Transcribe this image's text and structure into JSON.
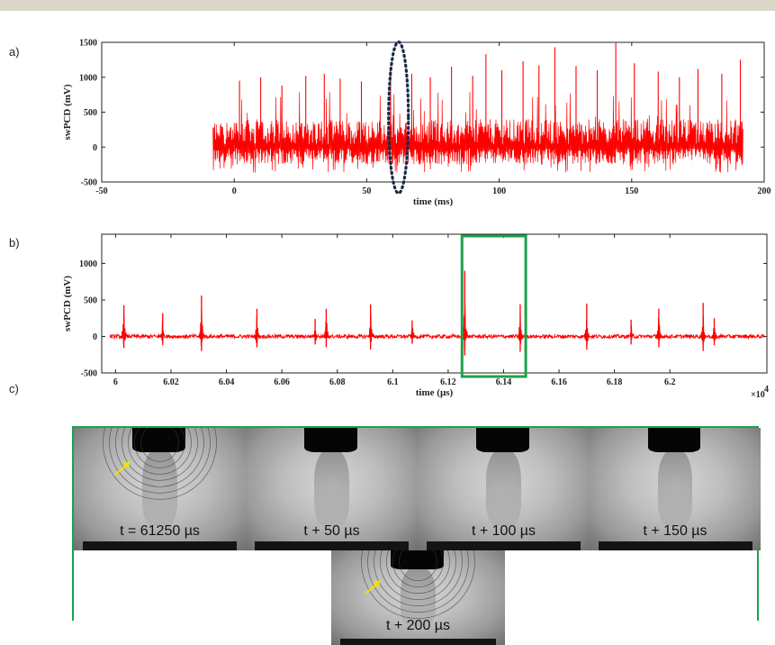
{
  "panel_labels": [
    "a)",
    "b)",
    "c)"
  ],
  "chart_data": [
    {
      "type": "line",
      "title": "",
      "xlabel": "time (ms)",
      "ylabel": "swPCD (mV)",
      "xlim": [
        -50,
        200
      ],
      "ylim": [
        -500,
        1500
      ],
      "xticks": [
        "-50",
        "0",
        "50",
        "100",
        "150",
        "200"
      ],
      "yticks": [
        "-500",
        "0",
        "500",
        "1000",
        "1500"
      ],
      "signal_x_range": [
        -8,
        192
      ],
      "noise_band_mv": [
        -250,
        400
      ],
      "series_color": "#ff0000",
      "highlight_color": "#1a2a4a",
      "peaks": [
        {
          "x": 2,
          "y": 950
        },
        {
          "x": 10,
          "y": 1000
        },
        {
          "x": 18,
          "y": 880
        },
        {
          "x": 27,
          "y": 1020
        },
        {
          "x": 34,
          "y": 1050
        },
        {
          "x": 40,
          "y": 980
        },
        {
          "x": 48,
          "y": 940
        },
        {
          "x": 59,
          "y": 1150
        },
        {
          "x": 67,
          "y": 1050
        },
        {
          "x": 74,
          "y": 1000
        },
        {
          "x": 82,
          "y": 1150
        },
        {
          "x": 90,
          "y": 1020
        },
        {
          "x": 95,
          "y": 1330
        },
        {
          "x": 101,
          "y": 1100
        },
        {
          "x": 109,
          "y": 1230
        },
        {
          "x": 115,
          "y": 1170
        },
        {
          "x": 121,
          "y": 1430
        },
        {
          "x": 129,
          "y": 1160
        },
        {
          "x": 137,
          "y": 1100
        },
        {
          "x": 144,
          "y": 1490
        },
        {
          "x": 151,
          "y": 1200
        },
        {
          "x": 160,
          "y": 1080
        },
        {
          "x": 168,
          "y": 1000
        },
        {
          "x": 175,
          "y": 1120
        },
        {
          "x": 184,
          "y": 1050
        },
        {
          "x": 191,
          "y": 1250
        }
      ]
    },
    {
      "type": "line",
      "title": "",
      "xlabel": "time (µs)",
      "ylabel": "swPCD (mV)",
      "x_multiplier": "×10",
      "x_multiplier_exp": "4",
      "xlim": [
        59950,
        62350
      ],
      "ylim": [
        -500,
        1400
      ],
      "xticks": [
        "6",
        "6.02",
        "6.04",
        "6.06",
        "6.08",
        "6.1",
        "6.12",
        "6.14",
        "6.16",
        "6.18",
        "6.2"
      ],
      "yticks": [
        "-500",
        "0",
        "500",
        "1000"
      ],
      "series_color": "#ff0000",
      "highlight_color": "#1ba34a",
      "highlight_window": [
        61250,
        61480
      ],
      "spikes": [
        {
          "t": 60030,
          "peak": 430,
          "trough": -160
        },
        {
          "t": 60170,
          "peak": 320,
          "trough": -120
        },
        {
          "t": 60310,
          "peak": 560,
          "trough": -200
        },
        {
          "t": 60510,
          "peak": 380,
          "trough": -150
        },
        {
          "t": 60720,
          "peak": 240,
          "trough": -110
        },
        {
          "t": 60760,
          "peak": 380,
          "trough": -150
        },
        {
          "t": 60920,
          "peak": 440,
          "trough": -180
        },
        {
          "t": 61070,
          "peak": 220,
          "trough": -100
        },
        {
          "t": 61260,
          "peak": 900,
          "trough": -260
        },
        {
          "t": 61460,
          "peak": 440,
          "trough": -210
        },
        {
          "t": 61700,
          "peak": 450,
          "trough": -180
        },
        {
          "t": 61860,
          "peak": 230,
          "trough": -110
        },
        {
          "t": 61960,
          "peak": 380,
          "trough": -150
        },
        {
          "t": 62120,
          "peak": 460,
          "trough": -200
        },
        {
          "t": 62160,
          "peak": 250,
          "trough": -120
        }
      ]
    }
  ],
  "photos": {
    "frame_color": "#1ba34a",
    "arrow_color": "#f2e000",
    "frames": [
      {
        "caption": "t = 61250 µs",
        "arrow": true,
        "waves": true
      },
      {
        "caption": "t + 50 µs",
        "arrow": false,
        "waves": false
      },
      {
        "caption": "t + 100 µs",
        "arrow": false,
        "waves": false
      },
      {
        "caption": "t + 150 µs",
        "arrow": false,
        "waves": false
      },
      {
        "caption": "t + 200 µs",
        "arrow": true,
        "waves": true
      }
    ]
  }
}
